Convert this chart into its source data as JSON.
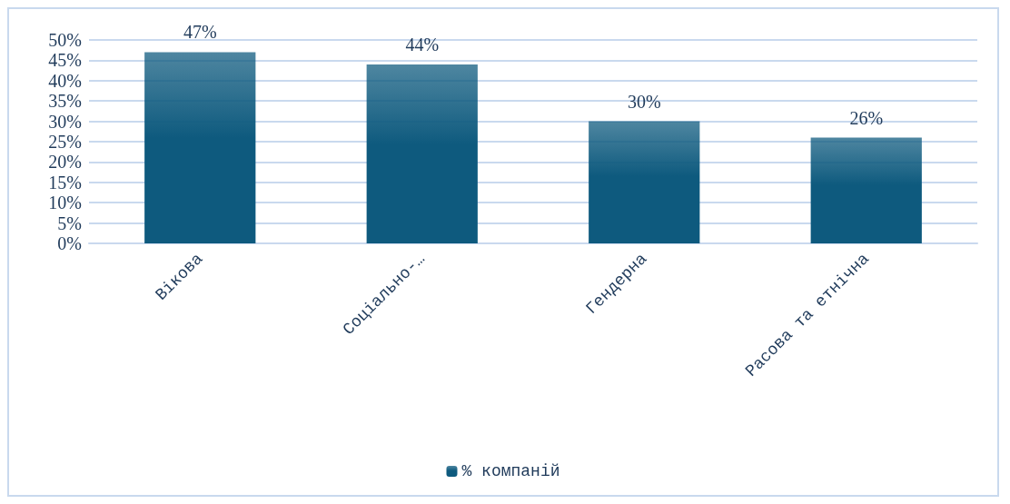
{
  "chart_data": {
    "type": "bar",
    "categories": [
      "Вікова",
      "Соціально-…",
      "Гендерна",
      "Расова та етнічна"
    ],
    "series": [
      {
        "name": "% компаній",
        "color": "#0e5a7e",
        "values": [
          47,
          44,
          30,
          26
        ],
        "value_labels": [
          "47%",
          "44%",
          "30%",
          "26%"
        ]
      }
    ],
    "ylim": [
      0,
      50
    ],
    "yticks": [
      {
        "value": 0,
        "label": "0%"
      },
      {
        "value": 5,
        "label": "5%"
      },
      {
        "value": 10,
        "label": "10%"
      },
      {
        "value": 15,
        "label": "15%"
      },
      {
        "value": 20,
        "label": "20%"
      },
      {
        "value": 25,
        "label": "25%"
      },
      {
        "value": 30,
        "label": "30%"
      },
      {
        "value": 35,
        "label": "35%"
      },
      {
        "value": 40,
        "label": "40%"
      },
      {
        "value": 45,
        "label": "45%"
      },
      {
        "value": 50,
        "label": "50%"
      }
    ],
    "grid": "y",
    "legend": "bottom"
  }
}
